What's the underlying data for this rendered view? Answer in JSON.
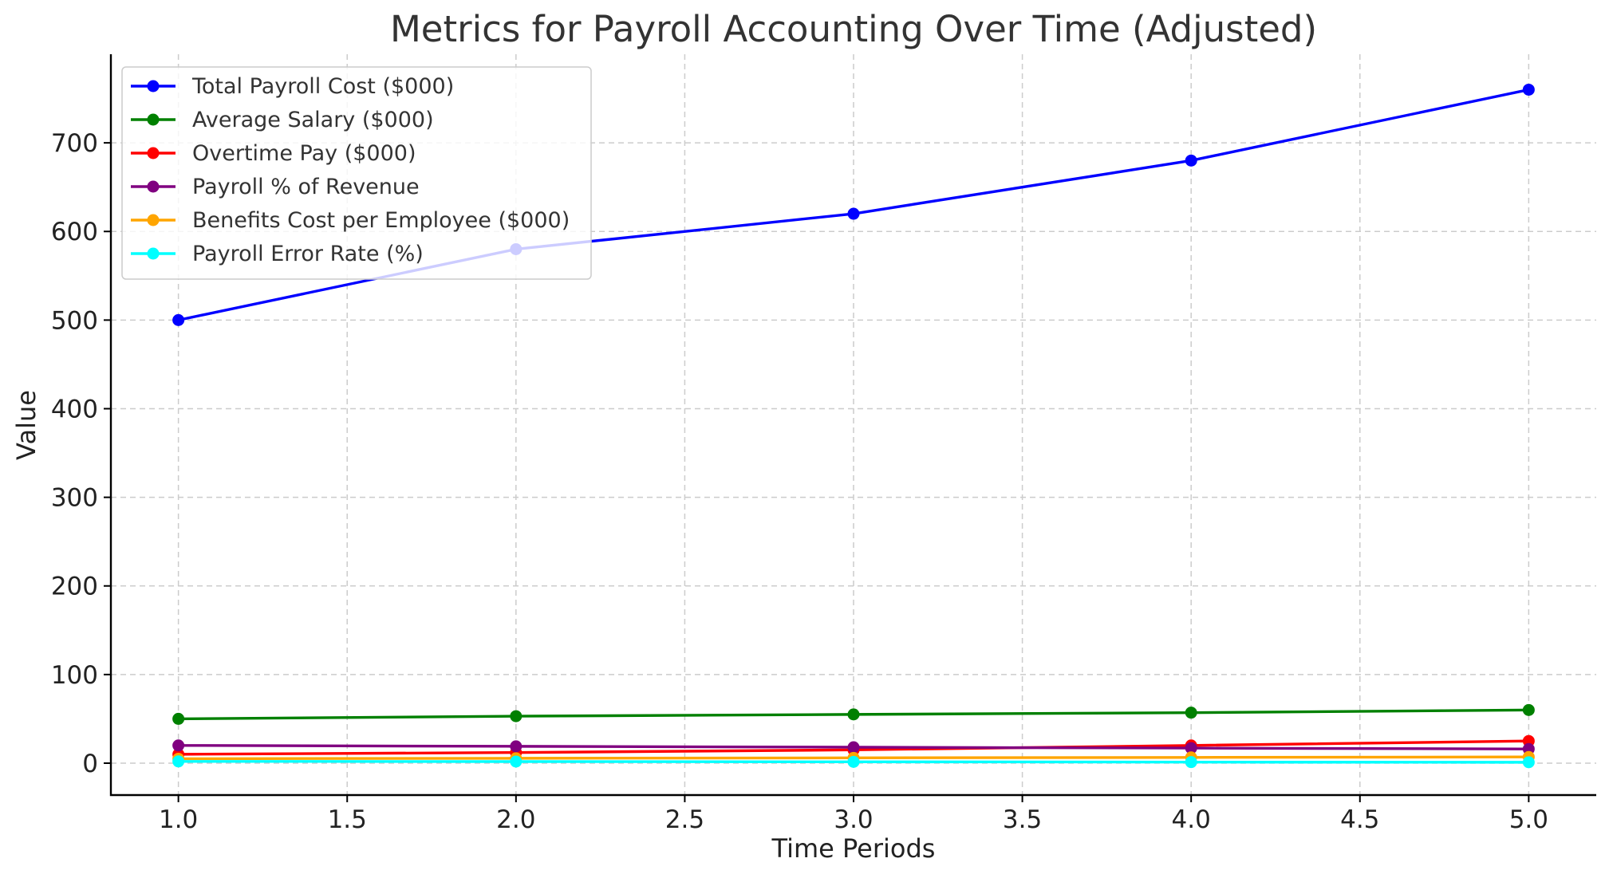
{
  "chart_data": {
    "type": "line",
    "title": "Metrics for Payroll Accounting Over Time (Adjusted)",
    "xlabel": "Time Periods",
    "ylabel": "Value",
    "x": [
      1,
      2,
      3,
      4,
      5
    ],
    "xlim": [
      0.8,
      5.2
    ],
    "ylim": [
      -36,
      800
    ],
    "xticks": [
      "1.0",
      "1.5",
      "2.0",
      "2.5",
      "3.0",
      "3.5",
      "4.0",
      "4.5",
      "5.0"
    ],
    "yticks": [
      "0",
      "100",
      "200",
      "300",
      "400",
      "500",
      "600",
      "700"
    ],
    "grid": true,
    "legend_position": "top-left",
    "series": [
      {
        "name": "Total Payroll Cost ($000)",
        "color": "#0000ff",
        "values": [
          500,
          580,
          620,
          680,
          760
        ]
      },
      {
        "name": "Average Salary ($000)",
        "color": "#008000",
        "values": [
          50,
          53,
          55,
          57,
          60
        ]
      },
      {
        "name": "Overtime Pay ($000)",
        "color": "#ff0000",
        "values": [
          10,
          12,
          15,
          20,
          25
        ]
      },
      {
        "name": "Payroll % of Revenue",
        "color": "#800080",
        "values": [
          20,
          19,
          18,
          17,
          16
        ]
      },
      {
        "name": "Benefits Cost per Employee ($000)",
        "color": "#ffa500",
        "values": [
          5,
          5.5,
          6,
          6.5,
          7
        ]
      },
      {
        "name": "Payroll Error Rate (%)",
        "color": "#00ffff",
        "values": [
          2,
          1.8,
          1.5,
          1.2,
          1
        ]
      }
    ]
  }
}
